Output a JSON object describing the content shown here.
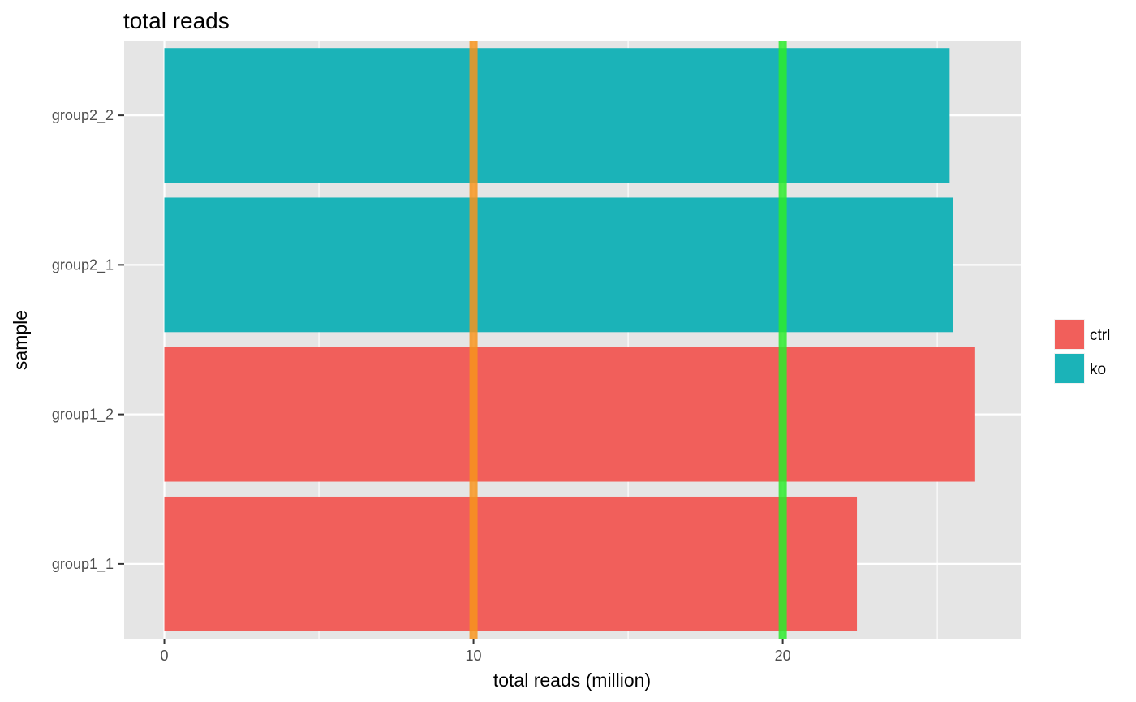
{
  "chart_data": {
    "type": "bar",
    "orientation": "horizontal",
    "title": "total reads",
    "xlabel": "total reads (million)",
    "ylabel": "sample",
    "categories": [
      "group1_1",
      "group1_2",
      "group2_1",
      "group2_2"
    ],
    "values": [
      22.4,
      26.2,
      25.5,
      25.4
    ],
    "groups": [
      "ctrl",
      "ctrl",
      "ko",
      "ko"
    ],
    "xlim": [
      -1.3,
      27.7
    ],
    "xticks": [
      0,
      10,
      20
    ],
    "grid": true,
    "legend": {
      "position": "right",
      "entries": [
        {
          "label": "ctrl",
          "color": "#F15F5B"
        },
        {
          "label": "ko",
          "color": "#1BB3B8"
        }
      ]
    },
    "reference_lines": [
      {
        "x": 10,
        "color": "#F7941D"
      },
      {
        "x": 20,
        "color": "#2BEB2B"
      }
    ],
    "colors": {
      "panel_background": "#E5E5E5",
      "grid_line": "#FFFFFF"
    }
  }
}
